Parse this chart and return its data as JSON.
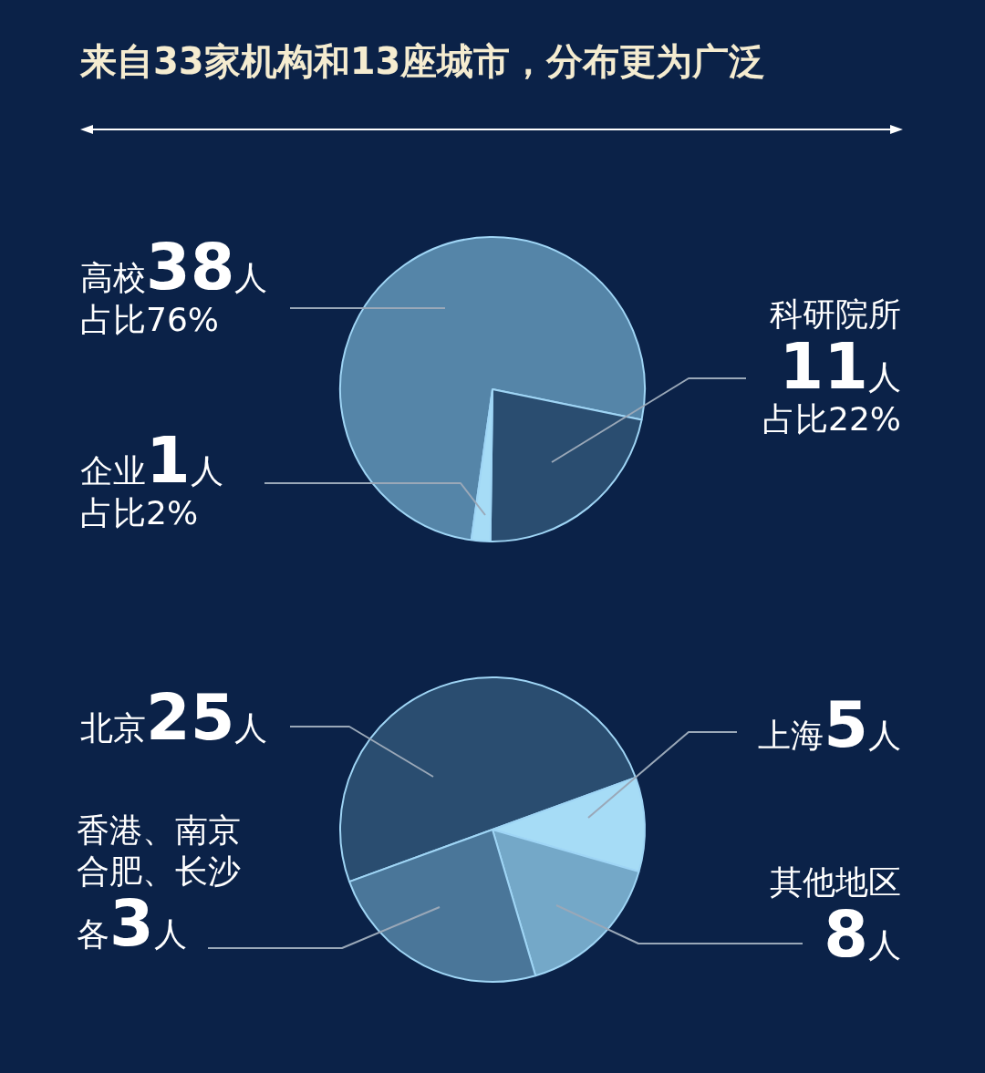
{
  "chart_data": [
    {
      "type": "pie",
      "title": "来自33家机构和13座城市，分布更为广泛",
      "categories": [
        "高校",
        "科研院所",
        "企业"
      ],
      "values": [
        38,
        11,
        1
      ],
      "colors": [
        "#5585a8",
        "#2a4d70",
        "#a6dcf6"
      ],
      "value_labels": [
        "38人",
        "11人",
        "1人"
      ],
      "annotations": [
        "占比76%",
        "占比22%",
        "占比2%"
      ]
    },
    {
      "type": "pie",
      "categories": [
        "北京",
        "上海",
        "其他地区",
        "香港、南京合肥、长沙"
      ],
      "values": [
        25,
        5,
        8,
        12
      ],
      "colors": [
        "#2a4d70",
        "#a6dcf6",
        "#74a8c8",
        "#4a7699"
      ],
      "value_labels": [
        "25人",
        "5人",
        "8人",
        "各3人"
      ]
    }
  ]
}
